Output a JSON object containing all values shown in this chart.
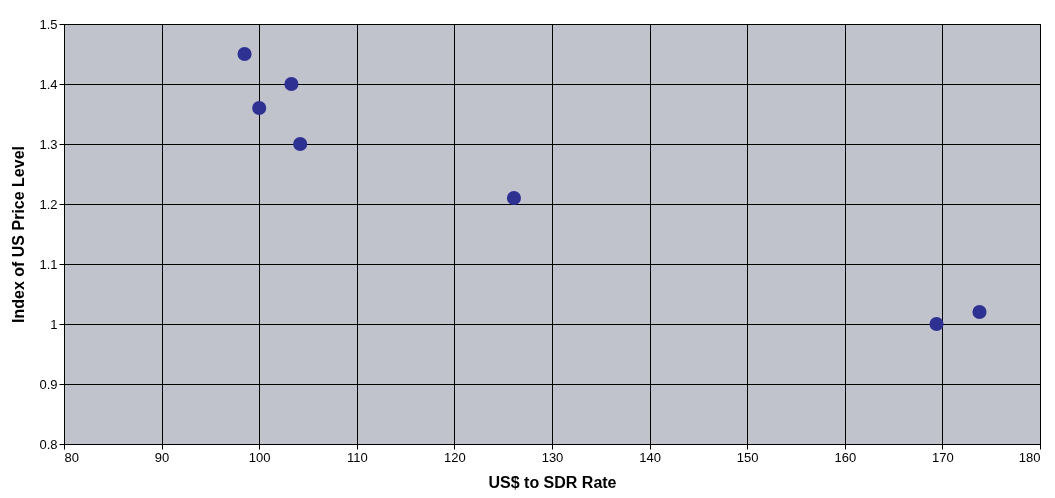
{
  "chart_data": {
    "type": "scatter",
    "xlabel": "US$ to SDR Rate",
    "ylabel": "Index of US Price Level",
    "x": [
      98.5,
      100.0,
      103.3,
      104.2,
      126.1,
      169.4,
      173.8
    ],
    "series": [
      {
        "color": "#2e3192",
        "values": [
          1.45,
          1.36,
          1.4,
          1.3,
          1.21,
          1.0,
          1.02
        ]
      }
    ],
    "xlim": [
      80,
      180
    ],
    "xticks": [
      80,
      90,
      100,
      110,
      120,
      130,
      140,
      150,
      160,
      170,
      180
    ],
    "ylim": [
      0.8,
      1.5
    ],
    "yticks": [
      0.8,
      0.9,
      1,
      1.1,
      1.2,
      1.3,
      1.4,
      1.5
    ],
    "grid": true,
    "marker": "circle"
  }
}
